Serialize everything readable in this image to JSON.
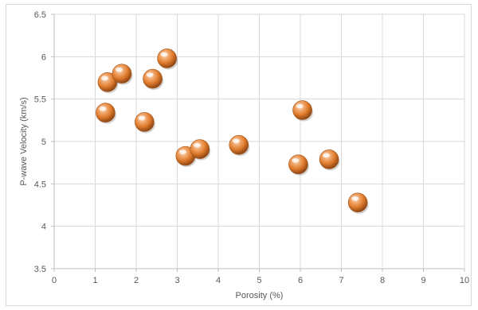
{
  "chart_data": {
    "type": "scatter",
    "title": "",
    "xlabel": "Porosity (%)",
    "ylabel": "P-wave Velocity (km/s)",
    "xlim": [
      0,
      10
    ],
    "ylim": [
      3.5,
      6.5
    ],
    "x_ticks": [
      "0",
      "1",
      "2",
      "3",
      "4",
      "5",
      "6",
      "7",
      "8",
      "9",
      "10"
    ],
    "y_ticks": [
      "3.5",
      "4",
      "4.5",
      "5",
      "5.5",
      "6",
      "6.5"
    ],
    "grid": true,
    "legend": "none",
    "marker_color": "#e8873a",
    "points": [
      {
        "x": 1.3,
        "y": 5.7
      },
      {
        "x": 1.65,
        "y": 5.8
      },
      {
        "x": 1.25,
        "y": 5.34
      },
      {
        "x": 2.2,
        "y": 5.23
      },
      {
        "x": 2.4,
        "y": 5.74
      },
      {
        "x": 2.75,
        "y": 5.98
      },
      {
        "x": 3.2,
        "y": 4.83
      },
      {
        "x": 3.55,
        "y": 4.91
      },
      {
        "x": 4.5,
        "y": 4.96
      },
      {
        "x": 5.95,
        "y": 4.73
      },
      {
        "x": 6.05,
        "y": 5.37
      },
      {
        "x": 6.7,
        "y": 4.79
      },
      {
        "x": 7.4,
        "y": 4.28
      }
    ]
  }
}
